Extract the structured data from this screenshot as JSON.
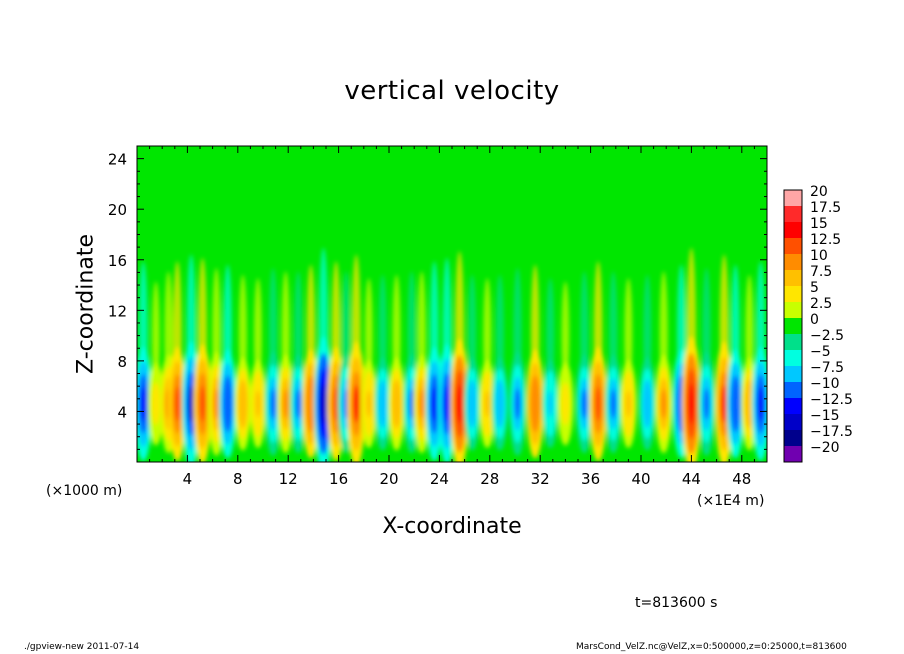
{
  "chart_data": {
    "type": "heatmap",
    "title": "vertical velocity",
    "xlabel": "X-coordinate",
    "ylabel": "Z-coordinate",
    "x_unit_left": "(×1000 m)",
    "x_scale_right": "(×1E4 m)",
    "xlim": [
      0,
      50
    ],
    "ylim": [
      0,
      25
    ],
    "x_ticks": [
      "4",
      "8",
      "12",
      "16",
      "20",
      "24",
      "28",
      "32",
      "36",
      "40",
      "44",
      "48"
    ],
    "y_ticks": [
      "4",
      "8",
      "12",
      "16",
      "20",
      "24"
    ],
    "colorbar": {
      "labels": [
        "20",
        "17.5",
        "15",
        "12.5",
        "10",
        "7.5",
        "5",
        "2.5",
        "0",
        "−2.5",
        "−5",
        "−7.5",
        "−10",
        "−12.5",
        "−15",
        "−17.5",
        "−20"
      ],
      "colors": [
        "#ffa6a6",
        "#ff2a2a",
        "#ff0000",
        "#ff5000",
        "#ff8c00",
        "#ffc000",
        "#ffe600",
        "#c8ff00",
        "#00e600",
        "#00e08a",
        "#00ffe0",
        "#00c8ff",
        "#0064ff",
        "#0000ff",
        "#0000c8",
        "#00008c",
        "#7000b0"
      ]
    },
    "columns": [
      {
        "x": 0.5,
        "v": -12
      },
      {
        "x": 1.5,
        "v": 6
      },
      {
        "x": 2.5,
        "v": 9
      },
      {
        "x": 3.2,
        "v": 12
      },
      {
        "x": 4.3,
        "v": -14
      },
      {
        "x": 5.2,
        "v": 13
      },
      {
        "x": 6.3,
        "v": 10
      },
      {
        "x": 7.2,
        "v": -11
      },
      {
        "x": 8.4,
        "v": 8
      },
      {
        "x": 9.6,
        "v": 7
      },
      {
        "x": 10.8,
        "v": -10
      },
      {
        "x": 11.8,
        "v": 9
      },
      {
        "x": 12.8,
        "v": -9
      },
      {
        "x": 13.8,
        "v": 11
      },
      {
        "x": 14.8,
        "v": -16
      },
      {
        "x": 15.8,
        "v": 12
      },
      {
        "x": 16.6,
        "v": -9
      },
      {
        "x": 17.4,
        "v": 14
      },
      {
        "x": 18.4,
        "v": 7
      },
      {
        "x": 19.5,
        "v": -8
      },
      {
        "x": 20.6,
        "v": 8
      },
      {
        "x": 21.8,
        "v": -9
      },
      {
        "x": 22.6,
        "v": 9
      },
      {
        "x": 23.6,
        "v": -12
      },
      {
        "x": 24.6,
        "v": -13
      },
      {
        "x": 25.6,
        "v": 15
      },
      {
        "x": 26.6,
        "v": -8
      },
      {
        "x": 27.8,
        "v": 7
      },
      {
        "x": 28.8,
        "v": -8
      },
      {
        "x": 30.2,
        "v": -10
      },
      {
        "x": 31.6,
        "v": 11
      },
      {
        "x": 32.8,
        "v": -7
      },
      {
        "x": 34.0,
        "v": 6
      },
      {
        "x": 35.5,
        "v": -9
      },
      {
        "x": 36.6,
        "v": 12
      },
      {
        "x": 37.8,
        "v": -9
      },
      {
        "x": 39.0,
        "v": 7
      },
      {
        "x": 40.5,
        "v": -8
      },
      {
        "x": 41.8,
        "v": 9
      },
      {
        "x": 43.2,
        "v": -11
      },
      {
        "x": 44.0,
        "v": 16
      },
      {
        "x": 45.2,
        "v": -10
      },
      {
        "x": 46.6,
        "v": 14
      },
      {
        "x": 47.5,
        "v": -11
      },
      {
        "x": 48.6,
        "v": 8
      },
      {
        "x": 49.5,
        "v": -12
      }
    ]
  },
  "time_label": "t=813600 s",
  "footer_left": "./gpview-new   2011-07-14",
  "footer_right": "MarsCond_VelZ.nc@VelZ,x=0:500000,z=0:25000,t=813600"
}
